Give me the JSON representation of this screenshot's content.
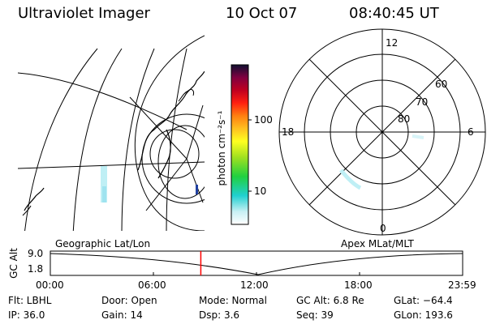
{
  "header": {
    "instrument": "Ultraviolet Imager",
    "date": "10 Oct 07",
    "time": "08:40:45 UT"
  },
  "colorbar": {
    "unit_label": "photon cm⁻²s⁻¹",
    "ticks": [
      "100",
      "10"
    ]
  },
  "polar_plot": {
    "lat_labels": [
      "80",
      "70",
      "60"
    ],
    "mlt_labels": [
      "12",
      "18",
      "6",
      "0"
    ]
  },
  "timeline": {
    "left_title": "Geographic Lat/Lon",
    "right_title": "Apex MLat/MLT",
    "y_axis_label": "GC Alt",
    "y_ticks": [
      "9.0",
      "1.8"
    ],
    "x_ticks": [
      "00:00",
      "06:00",
      "12:00",
      "18:00",
      "23:59"
    ],
    "current_time_fraction": 0.365
  },
  "info": {
    "flt": "Flt: LBHL",
    "ip": "IP: 36.0",
    "door": "Door: Open",
    "gain": "Gain: 14",
    "mode": "Mode: Normal",
    "dsp": "Dsp:    3.6",
    "gc_alt": "GC Alt: 6.8 Re",
    "seq": "Seq: 39",
    "glat": "GLat: −64.4",
    "glon": "GLon: 193.6"
  },
  "colors": {
    "marker": "#ff0000",
    "aurora": "#bfeff5"
  }
}
